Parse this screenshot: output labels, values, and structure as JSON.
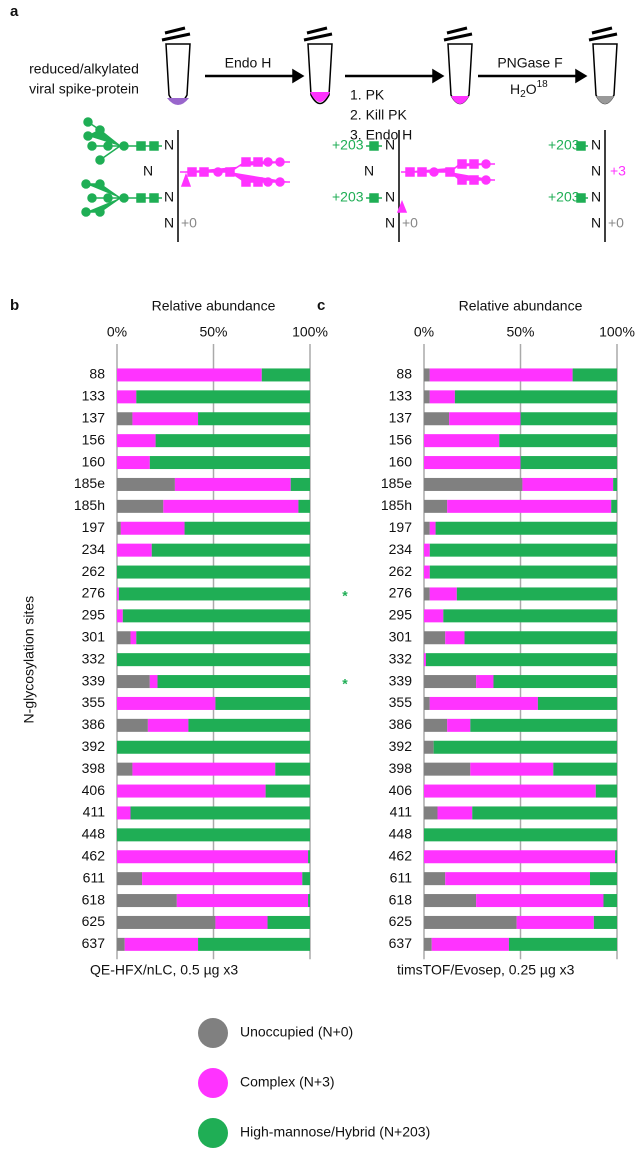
{
  "panel_a": {
    "label": "a",
    "sample": [
      "reduced/alkylated",
      "viral spike-protein"
    ],
    "step1": "Endo H",
    "step2": [
      "1. PK",
      "2. Kill PK",
      "3. Endo H"
    ],
    "step3": "PNGase F",
    "reagent": {
      "base": "H",
      "sub": "2",
      "mid": "O",
      "sup": "18"
    },
    "site": "N",
    "mass_none": "+0",
    "mass_hm": "+203",
    "mass_complex": "+3"
  },
  "chart_data": [
    {
      "type": "bar",
      "orientation": "horizontal",
      "stacked": true,
      "panel": "b",
      "title": "Relative abundance",
      "ylabel": "N-glycosylation sites",
      "caption": "QE-HFX/nLC, 0.5 µg x3",
      "categories": [
        "88",
        "133",
        "137",
        "156",
        "160",
        "185e",
        "185h",
        "197",
        "234",
        "262",
        "276",
        "295",
        "301",
        "332",
        "339",
        "355",
        "386",
        "392",
        "398",
        "406",
        "411",
        "448",
        "462",
        "611",
        "618",
        "625",
        "637"
      ],
      "series": [
        {
          "name": "Unoccupied (N+0)",
          "color": "#808080",
          "values": [
            0,
            0,
            8,
            0,
            0,
            30,
            24,
            2,
            0,
            0,
            0,
            0,
            7,
            0,
            17,
            0,
            16,
            0,
            8,
            0,
            0,
            0,
            0,
            13,
            31,
            51,
            4
          ]
        },
        {
          "name": "Complex (N+3)",
          "color": "#ff33ff",
          "values": [
            75,
            10,
            34,
            20,
            17,
            60,
            70,
            33,
            18,
            0,
            1,
            3,
            3,
            0,
            4,
            51,
            21,
            0,
            74,
            77,
            7,
            0,
            99,
            83,
            68,
            27,
            38
          ]
        },
        {
          "name": "High-mannose/Hybrid (N+203)",
          "color": "#1fae55",
          "values": [
            25,
            90,
            58,
            80,
            83,
            10,
            6,
            65,
            82,
            100,
            99,
            97,
            90,
            100,
            79,
            49,
            63,
            100,
            18,
            23,
            93,
            100,
            1,
            4,
            1,
            22,
            58
          ]
        }
      ],
      "xlim": [
        0,
        100
      ],
      "xticks": [
        {
          "value": 0,
          "label": "0%"
        },
        {
          "value": 50,
          "label": "50%"
        },
        {
          "value": 100,
          "label": "100%"
        }
      ],
      "grid": true,
      "annotations": [
        {
          "text": "*",
          "category": "276",
          "color": "#1fae55"
        },
        {
          "text": "*",
          "category": "339",
          "color": "#1fae55"
        }
      ]
    },
    {
      "type": "bar",
      "orientation": "horizontal",
      "stacked": true,
      "panel": "c",
      "title": "Relative abundance",
      "caption": "timsTOF/Evosep, 0.25 µg x3",
      "categories": [
        "88",
        "133",
        "137",
        "156",
        "160",
        "185e",
        "185h",
        "197",
        "234",
        "262",
        "276",
        "295",
        "301",
        "332",
        "339",
        "355",
        "386",
        "392",
        "398",
        "406",
        "411",
        "448",
        "462",
        "611",
        "618",
        "625",
        "637"
      ],
      "series": [
        {
          "name": "Unoccupied (N+0)",
          "color": "#808080",
          "values": [
            3,
            3,
            13,
            0,
            0,
            51,
            12,
            3,
            0,
            0,
            3,
            0,
            11,
            0,
            27,
            3,
            12,
            5,
            24,
            0,
            7,
            0,
            0,
            11,
            27,
            48,
            4
          ]
        },
        {
          "name": "Complex (N+3)",
          "color": "#ff33ff",
          "values": [
            74,
            13,
            37,
            39,
            50,
            47,
            85,
            3,
            3,
            3,
            14,
            10,
            10,
            1,
            9,
            56,
            12,
            0,
            43,
            89,
            18,
            0,
            99,
            75,
            66,
            40,
            40
          ]
        },
        {
          "name": "High-mannose/Hybrid (N+203)",
          "color": "#1fae55",
          "values": [
            23,
            84,
            50,
            61,
            50,
            2,
            3,
            94,
            97,
            97,
            83,
            90,
            79,
            99,
            64,
            41,
            76,
            95,
            33,
            11,
            75,
            100,
            1,
            14,
            7,
            12,
            56
          ]
        }
      ],
      "xlim": [
        0,
        100
      ],
      "xticks": [
        {
          "value": 0,
          "label": "0%"
        },
        {
          "value": 50,
          "label": "50%"
        },
        {
          "value": 100,
          "label": "100%"
        }
      ],
      "grid": true
    }
  ]
}
